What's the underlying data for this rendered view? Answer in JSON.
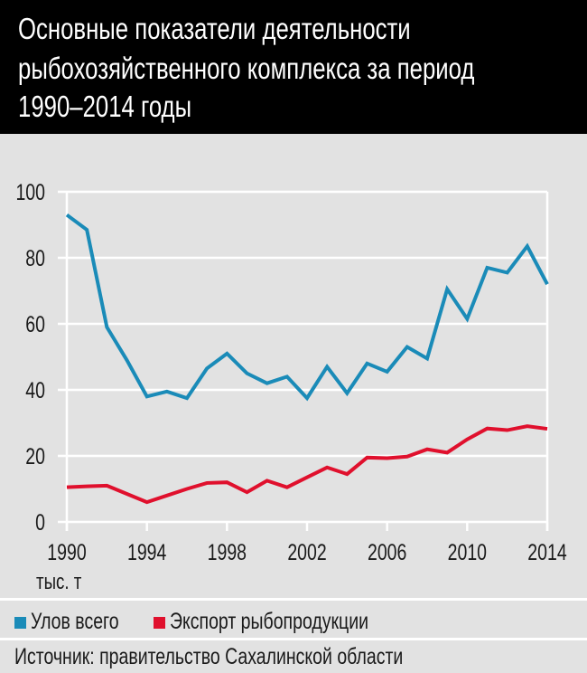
{
  "title": {
    "lines": [
      "Основные показатели деятельности",
      "рыбохозяйственного комплекса за период",
      "1990–2014 годы"
    ]
  },
  "chart_data": {
    "type": "line",
    "title": "Основные показатели деятельности рыбохозяйственного комплекса за период 1990–2014 годы",
    "ylabel": "тыс. т",
    "xlim": [
      1990,
      2014
    ],
    "ylim": [
      0,
      100
    ],
    "x_ticks": [
      "1990",
      "1994",
      "1998",
      "2002",
      "2006",
      "2010",
      "2014"
    ],
    "y_ticks": [
      "0",
      "20",
      "40",
      "60",
      "80",
      "100"
    ],
    "grid": "horizontal",
    "legend": "bottom",
    "x": [
      1990,
      1991,
      1992,
      1993,
      1994,
      1995,
      1996,
      1997,
      1998,
      1999,
      2000,
      2001,
      2002,
      2003,
      2004,
      2005,
      2006,
      2007,
      2008,
      2009,
      2010,
      2011,
      2012,
      2013,
      2014
    ],
    "series": [
      {
        "name": "Улов всего",
        "color": "#1a8bb8",
        "values": [
          93,
          88.5,
          59,
          49,
          38,
          39.5,
          37.5,
          46.5,
          51,
          45,
          42,
          44,
          37.5,
          47,
          39,
          48,
          45.5,
          53,
          49.5,
          70.5,
          61.5,
          77,
          75.5,
          83.5,
          72
        ]
      },
      {
        "name": "Экспорт рыбопродукции",
        "color": "#e0102d",
        "values": [
          10.5,
          10.8,
          11,
          8.5,
          6,
          8,
          10,
          11.8,
          12,
          9,
          12.5,
          10.5,
          13.5,
          16.5,
          14.5,
          19.5,
          19.3,
          19.8,
          22,
          21,
          25,
          28.3,
          27.8,
          29,
          28.2
        ]
      }
    ]
  },
  "source": "Источник: правительство Сахалинской области"
}
